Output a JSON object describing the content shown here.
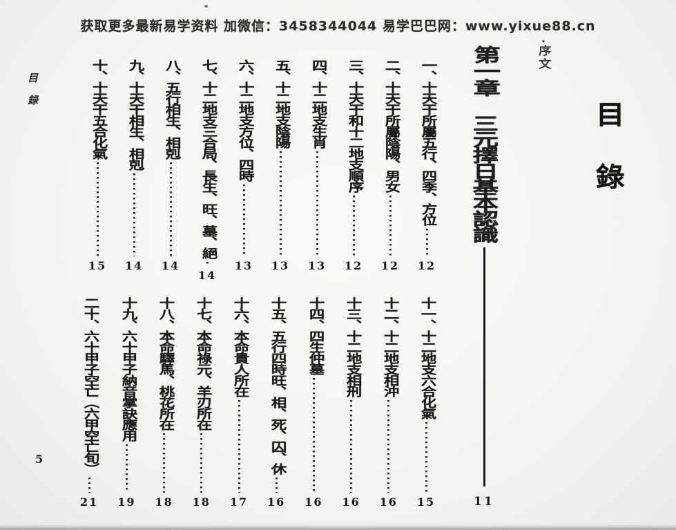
{
  "header": {
    "notice": "获取更多最新易学资料 加微信：3458344044 易学巴巴网：www.yixue88.cn"
  },
  "page": {
    "big_title": "目錄",
    "preface_bullet": "•",
    "preface": "序文",
    "margin_label": "目錄",
    "margin_page_number": "5"
  },
  "chapter": {
    "number": "第一章",
    "title": "三元擇日基本認識",
    "page": "11"
  },
  "toc_block1": [
    {
      "label": "一、十天干所屬五行、四季、方位",
      "page": "12"
    },
    {
      "label": "二、十天干所屬陰陽、男女",
      "page": "12"
    },
    {
      "label": "三、十天干和十二地支順序",
      "page": "12"
    },
    {
      "label": "四、十二地支生肖",
      "page": "13"
    },
    {
      "label": "五、十二地支陰陽",
      "page": "13"
    },
    {
      "label": "六、十二地支方位、四時",
      "page": "13"
    },
    {
      "label": "七、十二地支三合局、長生、旺、墓、絕",
      "page": "14"
    },
    {
      "label": "八、五行相生、相剋",
      "page": "14"
    },
    {
      "label": "九、十天干相生、相剋",
      "page": "14"
    },
    {
      "label": "十、十天干五合化氣",
      "page": "15"
    }
  ],
  "toc_block2": [
    {
      "label": "十一、十二地支六合化氣",
      "page": "15"
    },
    {
      "label": "十二、十二地支相沖",
      "page": "16"
    },
    {
      "label": "十三、十二地支相刑",
      "page": "16"
    },
    {
      "label": "十四、四生仲墓",
      "page": "16"
    },
    {
      "label": "十五、五行四時旺、相、死、囚、休",
      "page": "16"
    },
    {
      "label": "十六、本命貴人所在",
      "page": "17"
    },
    {
      "label": "十七、本命祿元、羊刃所在",
      "page": "18"
    },
    {
      "label": "十八、本命驛馬、桃花所在",
      "page": "18"
    },
    {
      "label": "十九、六十甲子納音掌訣應用",
      "page": "19"
    },
    {
      "label": "二十、六十甲子空亡（六甲空亡旬）",
      "page": "21"
    }
  ]
}
